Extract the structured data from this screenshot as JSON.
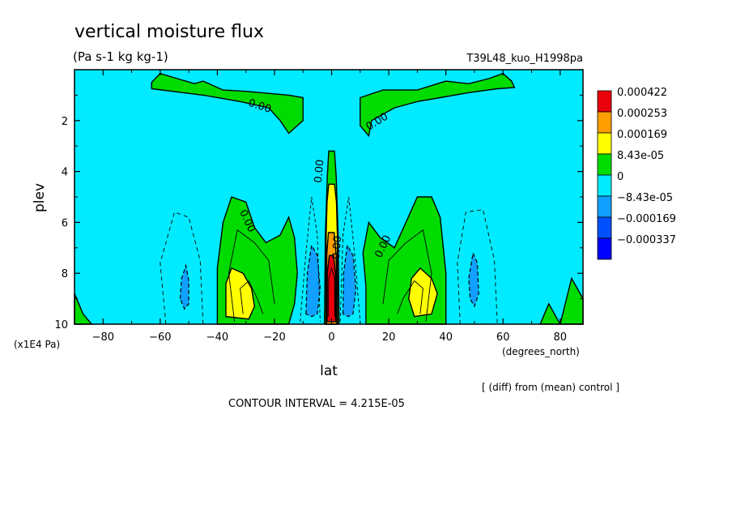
{
  "chart_data": {
    "type": "heatmap",
    "title": "vertical moisture flux",
    "subtitle": "(Pa s-1 kg kg-1)",
    "run_label": "T39L48_kuo_H1998pa",
    "xlabel": "lat",
    "x_units": "(degrees_north)",
    "ylabel": "plev",
    "y_units": "(x1E4 Pa)",
    "footer_note": "[ (diff) from (mean) control ]",
    "contour_interval_text": "CONTOUR INTERVAL = 4.215E-05",
    "xlim": [
      -90,
      88
    ],
    "ylim": [
      10,
      0
    ],
    "x_ticks": [
      -80,
      -60,
      -40,
      -20,
      0,
      20,
      40,
      60,
      80
    ],
    "y_ticks": [
      2,
      4,
      6,
      8,
      10
    ],
    "grid": false,
    "legend_position": "right",
    "contour_labels": [
      "0.00",
      "0.00",
      "0.00",
      "0.00",
      "0.00",
      "0.00"
    ],
    "levels": [
      {
        "label": "0.000422",
        "color": "#e8000b"
      },
      {
        "label": "0.000253",
        "color": "#ff9e00"
      },
      {
        "label": "0.000169",
        "color": "#ffff00"
      },
      {
        "label": "8.43e-05",
        "color": "#00dc00"
      },
      {
        "label": "0",
        "color": "#00ebff"
      },
      {
        "label": "−8.43e-05",
        "color": "#11a0ff"
      },
      {
        "label": "−0.000169",
        "color": "#0050ff"
      },
      {
        "label": "−0.000337",
        "color": "#0000ff"
      }
    ],
    "regions": [
      {
        "name": "green-top-left",
        "level": 3,
        "points": [
          [
            -63,
            0.5
          ],
          [
            -60,
            0.15
          ],
          [
            -54,
            0.35
          ],
          [
            -48,
            0.55
          ],
          [
            -45,
            0.45
          ],
          [
            -38,
            0.8
          ],
          [
            -30,
            0.85
          ],
          [
            -15,
            1.0
          ],
          [
            -10,
            1.1
          ],
          [
            -10,
            2.0
          ],
          [
            -15,
            2.5
          ],
          [
            -18,
            2.0
          ],
          [
            -22,
            1.5
          ],
          [
            -32,
            1.25
          ],
          [
            -45,
            1.0
          ],
          [
            -63,
            0.75
          ]
        ]
      },
      {
        "name": "green-top-right",
        "level": 3,
        "points": [
          [
            10,
            1.1
          ],
          [
            18,
            0.8
          ],
          [
            30,
            0.8
          ],
          [
            40,
            0.45
          ],
          [
            48,
            0.55
          ],
          [
            55,
            0.35
          ],
          [
            60,
            0.15
          ],
          [
            63,
            0.45
          ],
          [
            64,
            0.7
          ],
          [
            58,
            0.75
          ],
          [
            48,
            0.9
          ],
          [
            38,
            1.1
          ],
          [
            30,
            1.25
          ],
          [
            22,
            1.5
          ],
          [
            14,
            2.0
          ],
          [
            13,
            2.6
          ],
          [
            10,
            2.2
          ]
        ]
      },
      {
        "name": "green-bottom-left",
        "level": 3,
        "points": [
          [
            -40,
            10
          ],
          [
            -40,
            7.8
          ],
          [
            -38,
            6.0
          ],
          [
            -35,
            5.0
          ],
          [
            -30,
            5.2
          ],
          [
            -27,
            6.2
          ],
          [
            -23,
            6.8
          ],
          [
            -18,
            6.5
          ],
          [
            -15,
            5.8
          ],
          [
            -13,
            6.6
          ],
          [
            -12,
            8.0
          ],
          [
            -13,
            9.2
          ],
          [
            -15,
            10
          ]
        ]
      },
      {
        "name": "green-bottom-right",
        "level": 3,
        "points": [
          [
            12,
            10
          ],
          [
            12,
            8.5
          ],
          [
            11,
            7.2
          ],
          [
            13,
            6.0
          ],
          [
            17,
            6.6
          ],
          [
            22,
            7.0
          ],
          [
            26,
            6.0
          ],
          [
            30,
            5.0
          ],
          [
            35,
            5.0
          ],
          [
            38,
            5.8
          ],
          [
            40,
            8.0
          ],
          [
            40,
            10
          ]
        ]
      },
      {
        "name": "green-center",
        "level": 3,
        "points": [
          [
            -2.5,
            10
          ],
          [
            -2.2,
            6.5
          ],
          [
            -1.5,
            4.2
          ],
          [
            -1,
            3.2
          ],
          [
            1,
            3.2
          ],
          [
            1.6,
            4.2
          ],
          [
            2.3,
            6.5
          ],
          [
            2.6,
            10
          ]
        ]
      },
      {
        "name": "green-edge-left",
        "level": 3,
        "points": [
          [
            -90,
            10
          ],
          [
            -90,
            8.8
          ],
          [
            -87,
            9.6
          ],
          [
            -84,
            10
          ]
        ]
      },
      {
        "name": "green-edge-right",
        "level": 3,
        "points": [
          [
            73,
            10
          ],
          [
            76,
            9.2
          ],
          [
            80,
            10
          ]
        ]
      },
      {
        "name": "green-edge-right2",
        "level": 3,
        "points": [
          [
            80,
            10
          ],
          [
            84,
            8.2
          ],
          [
            88,
            9.0
          ],
          [
            88,
            10
          ]
        ]
      },
      {
        "name": "yellow-left",
        "level": 2,
        "points": [
          [
            -37,
            9.7
          ],
          [
            -37,
            8.4
          ],
          [
            -35,
            7.8
          ],
          [
            -31,
            8.0
          ],
          [
            -28,
            8.6
          ],
          [
            -27,
            9.3
          ],
          [
            -29,
            9.8
          ]
        ]
      },
      {
        "name": "yellow-right",
        "level": 2,
        "points": [
          [
            29,
            9.7
          ],
          [
            27,
            9.0
          ],
          [
            28,
            8.2
          ],
          [
            31,
            7.8
          ],
          [
            35,
            8.2
          ],
          [
            37,
            8.8
          ],
          [
            35,
            9.6
          ]
        ]
      },
      {
        "name": "yellow-center",
        "level": 2,
        "points": [
          [
            -2,
            10
          ],
          [
            -1.9,
            6.5
          ],
          [
            -1.6,
            5.2
          ],
          [
            -1,
            4.5
          ],
          [
            1,
            4.5
          ],
          [
            1.7,
            5.2
          ],
          [
            2,
            6.5
          ],
          [
            2.1,
            10
          ]
        ]
      },
      {
        "name": "orange-center",
        "level": 1,
        "points": [
          [
            -1.8,
            10
          ],
          [
            -1.7,
            7.3
          ],
          [
            -1.1,
            6.4
          ],
          [
            0.9,
            6.4
          ],
          [
            1.6,
            7.3
          ],
          [
            1.8,
            10
          ]
        ]
      },
      {
        "name": "red-center",
        "level": 0,
        "points": [
          [
            -1.6,
            9.9
          ],
          [
            -1.5,
            8.0
          ],
          [
            -0.8,
            7.3
          ],
          [
            0.7,
            7.3
          ],
          [
            1.3,
            8.0
          ],
          [
            1.4,
            9.9
          ]
        ]
      },
      {
        "name": "blue-left",
        "level": 5,
        "points": [
          [
            -53,
            9.0
          ],
          [
            -52.5,
            8.2
          ],
          [
            -51,
            7.7
          ],
          [
            -50,
            8.3
          ],
          [
            -50,
            9.2
          ],
          [
            -51.5,
            9.4
          ]
        ]
      },
      {
        "name": "blue-right",
        "level": 5,
        "points": [
          [
            48,
            8.2
          ],
          [
            49.5,
            7.2
          ],
          [
            51,
            7.6
          ],
          [
            51.5,
            8.8
          ],
          [
            50,
            9.3
          ],
          [
            48.5,
            9.0
          ]
        ]
      },
      {
        "name": "blue-center-left",
        "level": 5,
        "points": [
          [
            -9,
            9.6
          ],
          [
            -8.5,
            8.0
          ],
          [
            -7,
            6.9
          ],
          [
            -5,
            7.3
          ],
          [
            -4,
            8.6
          ],
          [
            -5,
            9.6
          ],
          [
            -7,
            9.7
          ]
        ]
      },
      {
        "name": "blue-center-right",
        "level": 5,
        "points": [
          [
            4,
            9.6
          ],
          [
            4.2,
            8.0
          ],
          [
            5.5,
            6.9
          ],
          [
            7.5,
            7.3
          ],
          [
            8.5,
            8.6
          ],
          [
            7.5,
            9.6
          ],
          [
            5.8,
            9.7
          ]
        ]
      }
    ]
  }
}
